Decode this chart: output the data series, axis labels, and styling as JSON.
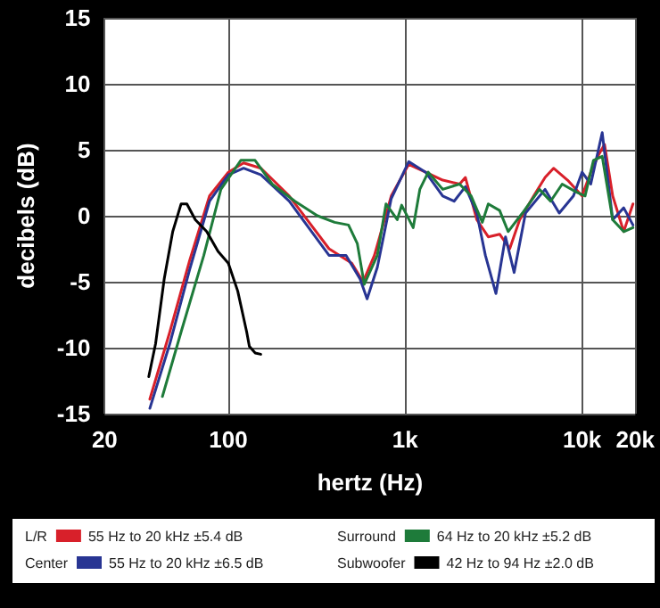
{
  "chart_data": {
    "type": "line",
    "xlabel": "hertz (Hz)",
    "ylabel": "decibels (dB)",
    "log": "x",
    "xlim": [
      20,
      20000
    ],
    "xticks": [
      20,
      100,
      {
        "value": 1000,
        "label": "1k"
      },
      {
        "value": 10000,
        "label": "10k"
      },
      {
        "value": 20000,
        "label": "20k"
      }
    ],
    "ylim": [
      -15,
      15
    ],
    "yticks": [
      -15,
      -10,
      -5,
      0,
      5,
      10,
      15
    ],
    "grid": true,
    "legend": "bottom",
    "marker": "none",
    "line_style": "solid",
    "annotations": [
      "55 Hz to 20 kHz ±5.4 dB",
      "55 Hz to 20 kHz ±6.5 dB",
      "64 Hz to 20 kHz ±5.2 dB",
      "42 Hz to 94 Hz ±2.0 dB"
    ],
    "series": [
      {
        "name": "L/R",
        "color": "#d8202a",
        "x": [
          36,
          46.7,
          60.4,
          78.3,
          100,
          122,
          153,
          221,
          371,
          499,
          578,
          670,
          834,
          1047,
          1305,
          1630,
          2030,
          2190,
          2540,
          2950,
          3420,
          3900,
          4440,
          5330,
          6180,
          6900,
          8280,
          10000,
          11200,
          12500,
          13400,
          14900,
          17200,
          19400
        ],
        "values": [
          -13.9,
          -8.8,
          -3.4,
          1.5,
          3.3,
          4.0,
          3.6,
          1.5,
          -2.5,
          -3.6,
          -5.0,
          -3.0,
          1.5,
          3.9,
          3.3,
          2.7,
          2.4,
          2.9,
          -0.3,
          -1.6,
          -1.4,
          -2.5,
          -0.3,
          1.5,
          2.9,
          3.6,
          2.7,
          1.5,
          3.3,
          4.7,
          5.4,
          1.5,
          -1.2,
          0.9
        ]
      },
      {
        "name": "Center",
        "color": "#283593",
        "x": [
          36,
          46.7,
          60.4,
          78.3,
          100,
          122,
          153,
          221,
          371,
          463,
          556,
          609,
          696,
          834,
          1047,
          1305,
          1630,
          1890,
          2190,
          2540,
          2840,
          3260,
          3690,
          4130,
          4790,
          6180,
          7430,
          8940,
          10000,
          11200,
          13000,
          14900,
          17200,
          19400
        ],
        "values": [
          -14.6,
          -9.7,
          -4.1,
          1.1,
          3.1,
          3.6,
          3.1,
          1.1,
          -3.0,
          -3.0,
          -4.8,
          -6.3,
          -3.9,
          1.3,
          4.1,
          3.3,
          1.5,
          1.1,
          2.2,
          0.2,
          -3.0,
          -5.9,
          -1.6,
          -4.3,
          0.2,
          2.0,
          0.2,
          1.5,
          3.3,
          2.4,
          6.3,
          -0.3,
          0.6,
          -0.7
        ]
      },
      {
        "name": "Surround",
        "color": "#1e7b3a",
        "x": [
          42.4,
          54.1,
          72.7,
          90.8,
          117.7,
          141.6,
          177,
          238,
          319,
          399,
          478,
          536,
          587,
          696,
          779,
          902,
          955,
          1110,
          1210,
          1350,
          1630,
          2030,
          2360,
          2730,
          2950,
          3420,
          3820,
          4600,
          5740,
          6640,
          7720,
          9270,
          10400,
          11600,
          13000,
          14900,
          17200,
          19400
        ],
        "values": [
          -13.7,
          -8.8,
          -3.0,
          2.0,
          4.2,
          4.2,
          2.4,
          1.1,
          0.0,
          -0.5,
          -0.7,
          -2.1,
          -5.2,
          -3.0,
          0.9,
          -0.3,
          0.8,
          -0.9,
          2.0,
          3.3,
          2.0,
          2.4,
          1.5,
          -0.5,
          0.9,
          0.4,
          -1.2,
          0.2,
          2.0,
          1.1,
          2.4,
          1.8,
          1.5,
          4.2,
          4.5,
          -0.3,
          -1.2,
          -0.9
        ]
      },
      {
        "name": "Subwoofer",
        "color": "#000000",
        "x": [
          35.5,
          38.8,
          43.4,
          48.5,
          54.1,
          58.3,
          65.1,
          75.5,
          87.5,
          100,
          113,
          127,
          131.5,
          142,
          152.5
        ],
        "values": [
          -12.2,
          -9.7,
          -4.8,
          -1.2,
          0.9,
          0.9,
          -0.3,
          -1.2,
          -2.7,
          -3.6,
          -5.7,
          -8.8,
          -9.9,
          -10.4,
          -10.5
        ]
      }
    ]
  }
}
